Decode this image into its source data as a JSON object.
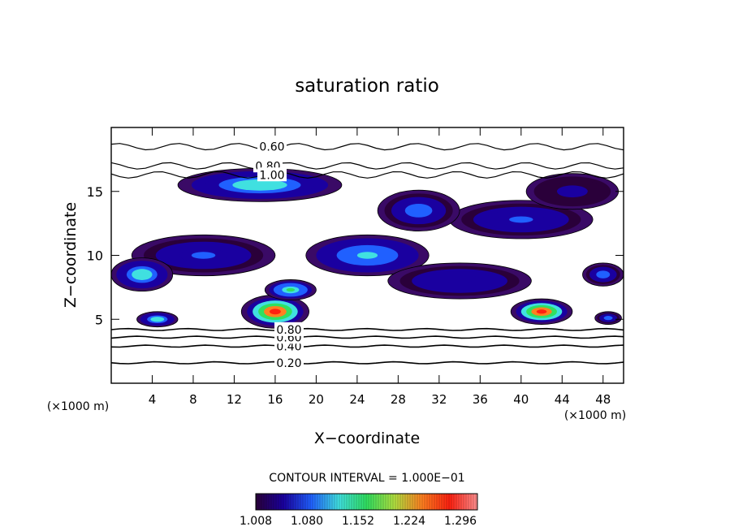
{
  "chart_data": {
    "type": "heatmap",
    "title": "saturation ratio",
    "xlabel": "X−coordinate",
    "ylabel": "Z−coordinate",
    "x_unit_left": "(×1000 m)",
    "x_unit_right": "(×1000 m)",
    "xlim": [
      0,
      50
    ],
    "ylim": [
      0,
      20
    ],
    "xticks": [
      4,
      8,
      12,
      16,
      20,
      24,
      28,
      32,
      36,
      40,
      44,
      48
    ],
    "yticks": [
      5,
      10,
      15
    ],
    "contour_interval_text": "CONTOUR INTERVAL = 1.000E−01",
    "colorbar": {
      "ticks": [
        "1.008",
        "1.080",
        "1.152",
        "1.224",
        "1.296"
      ],
      "range": [
        1.008,
        1.32
      ],
      "colors": [
        "#2a003a",
        "#1a00a0",
        "#2060ff",
        "#40e0e0",
        "#30e060",
        "#b0e040",
        "#ff8020",
        "#ff2010",
        "#ff9090"
      ]
    },
    "contour_lines": [
      {
        "label": "0.20",
        "z": 1.6
      },
      {
        "label": "0.40",
        "z": 2.9
      },
      {
        "label": "0.60",
        "z": 3.6
      },
      {
        "label": "0.80",
        "z": 4.2
      },
      {
        "label": "0.60",
        "z": 18.5
      },
      {
        "label": "0.80",
        "z": 17.0
      },
      {
        "label": "1.00",
        "z": 16.3
      }
    ],
    "supersaturated_regions": [
      {
        "x": 4.5,
        "z": 5.0,
        "rx": 2.0,
        "rz": 0.6,
        "peak": 1.14
      },
      {
        "x": 16.0,
        "z": 5.6,
        "rx": 3.3,
        "rz": 1.3,
        "peak": 1.3
      },
      {
        "x": 42.0,
        "z": 5.6,
        "rx": 3.0,
        "rz": 1.0,
        "peak": 1.28
      },
      {
        "x": 48.5,
        "z": 5.1,
        "rx": 1.3,
        "rz": 0.5,
        "peak": 1.1
      },
      {
        "x": 17.5,
        "z": 7.3,
        "rx": 2.5,
        "rz": 0.8,
        "peak": 1.16
      },
      {
        "x": 9.0,
        "z": 10.0,
        "rx": 7.0,
        "rz": 1.6,
        "peak": 1.08
      },
      {
        "x": 3.0,
        "z": 8.5,
        "rx": 3.0,
        "rz": 1.3,
        "peak": 1.13
      },
      {
        "x": 25.0,
        "z": 10.0,
        "rx": 6.0,
        "rz": 1.6,
        "peak": 1.12
      },
      {
        "x": 40.0,
        "z": 12.8,
        "rx": 7.0,
        "rz": 1.5,
        "peak": 1.08
      },
      {
        "x": 14.5,
        "z": 15.5,
        "rx": 8.0,
        "rz": 1.3,
        "peak": 1.13
      },
      {
        "x": 30.0,
        "z": 13.5,
        "rx": 4.0,
        "rz": 1.6,
        "peak": 1.1
      },
      {
        "x": 45.0,
        "z": 15.0,
        "rx": 4.5,
        "rz": 1.4,
        "peak": 1.04
      },
      {
        "x": 34.0,
        "z": 8.0,
        "rx": 7.0,
        "rz": 1.4,
        "peak": 1.06
      },
      {
        "x": 48.0,
        "z": 8.5,
        "rx": 2.0,
        "rz": 0.9,
        "peak": 1.09
      }
    ],
    "grid": false
  }
}
